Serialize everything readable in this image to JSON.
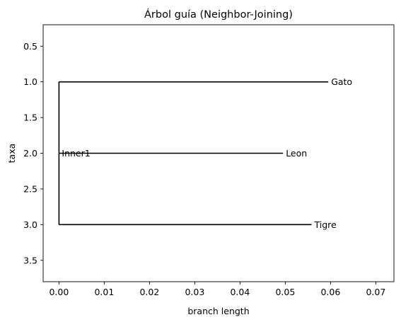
{
  "chart_data": {
    "type": "tree",
    "title": "Árbol guía (Neighbor-Joining)",
    "xlabel": "branch length",
    "ylabel": "taxa",
    "xlim": [
      -0.0035,
      0.074
    ],
    "ylim": [
      3.8,
      0.2
    ],
    "x_ticks": [
      0.0,
      0.01,
      0.02,
      0.03,
      0.04,
      0.05,
      0.06,
      0.07
    ],
    "x_tick_labels": [
      "0.00",
      "0.01",
      "0.02",
      "0.03",
      "0.04",
      "0.05",
      "0.06",
      "0.07"
    ],
    "y_ticks": [
      0.5,
      1.0,
      1.5,
      2.0,
      2.5,
      3.0,
      3.5
    ],
    "y_tick_labels": [
      "0.5",
      "1.0",
      "1.5",
      "2.0",
      "2.5",
      "3.0",
      "3.5"
    ],
    "grid": false,
    "legend": false,
    "line_color": "#000000",
    "root": {
      "name": "Inner1",
      "x": 0.0,
      "y": 2.0
    },
    "branches": [
      {
        "name": "Gato",
        "y": 1.0,
        "length": 0.0595
      },
      {
        "name": "Leon",
        "y": 2.0,
        "length": 0.0495
      },
      {
        "name": "Tigre",
        "y": 3.0,
        "length": 0.0558
      }
    ]
  }
}
